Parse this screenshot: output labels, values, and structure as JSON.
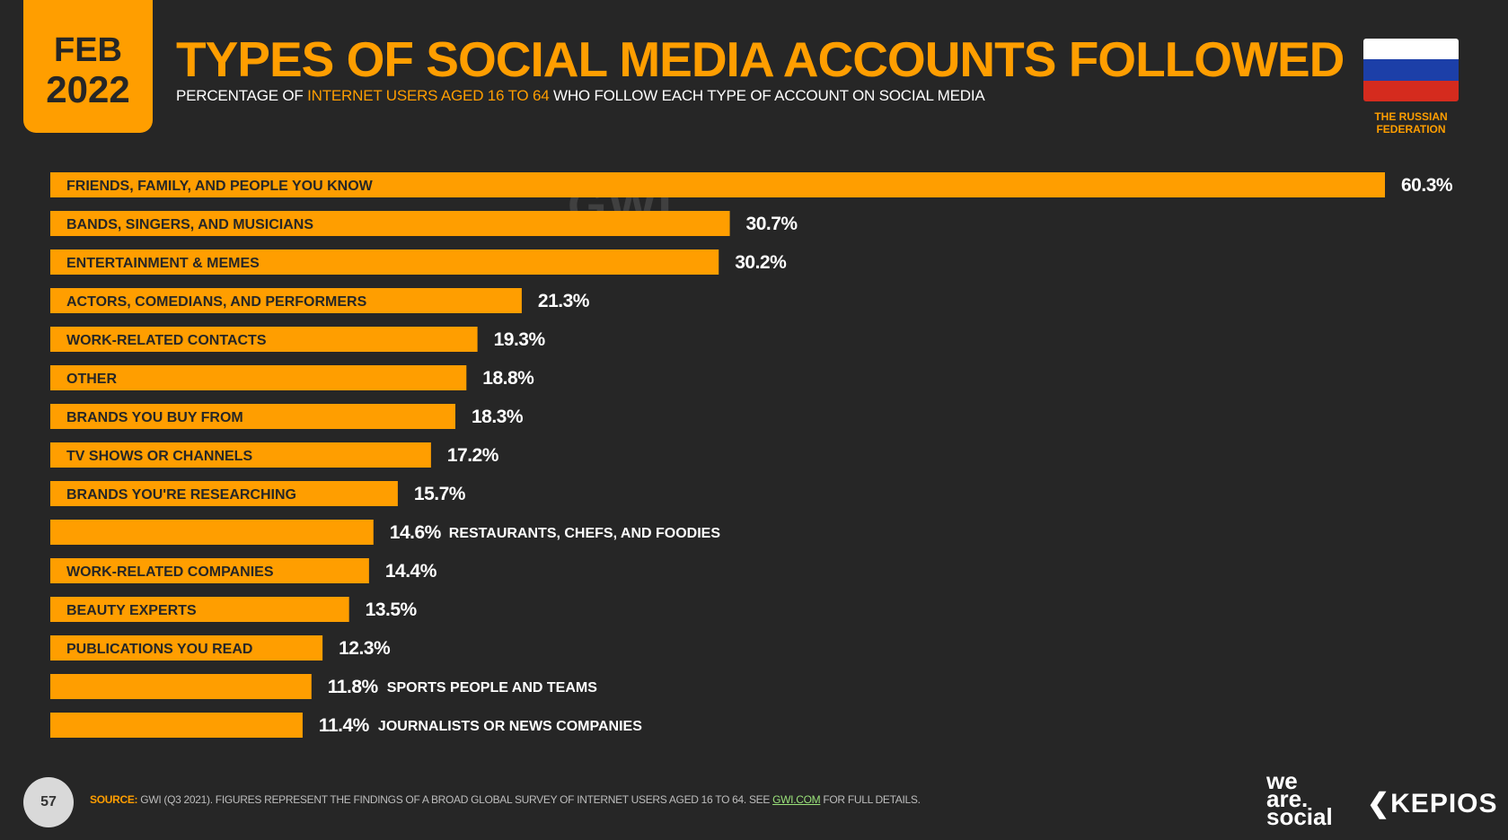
{
  "header": {
    "date_month": "FEB",
    "date_year": "2022",
    "title": "TYPES OF SOCIAL MEDIA ACCOUNTS FOLLOWED",
    "subtitle_pre": "PERCENTAGE OF ",
    "subtitle_highlight": "INTERNET USERS AGED 16 TO 64",
    "subtitle_post": " WHO FOLLOW EACH TYPE OF ACCOUNT ON SOCIAL MEDIA",
    "country_line1": "THE RUSSIAN",
    "country_line2": "FEDERATION",
    "watermark": "GWI."
  },
  "colors": {
    "background": "#262626",
    "accent": "#FF9E00",
    "flag": [
      "#FFFFFF",
      "#1C3FA8",
      "#D52B1E"
    ]
  },
  "chart_data": {
    "type": "bar",
    "orientation": "horizontal",
    "categories": [
      "FRIENDS, FAMILY, AND PEOPLE YOU KNOW",
      "BANDS, SINGERS, AND MUSICIANS",
      "ENTERTAINMENT & MEMES",
      "ACTORS, COMEDIANS, AND PERFORMERS",
      "WORK-RELATED CONTACTS",
      "OTHER",
      "BRANDS YOU BUY FROM",
      "TV SHOWS OR CHANNELS",
      "BRANDS YOU'RE RESEARCHING",
      "RESTAURANTS, CHEFS, AND FOODIES",
      "WORK-RELATED COMPANIES",
      "BEAUTY EXPERTS",
      "PUBLICATIONS YOU READ",
      "SPORTS PEOPLE AND TEAMS",
      "JOURNALISTS OR NEWS COMPANIES"
    ],
    "values": [
      60.3,
      30.7,
      30.2,
      21.3,
      19.3,
      18.8,
      18.3,
      17.2,
      15.7,
      14.6,
      14.4,
      13.5,
      12.3,
      11.8,
      11.4
    ],
    "value_labels": [
      "60.3%",
      "30.7%",
      "30.2%",
      "21.3%",
      "19.3%",
      "18.8%",
      "18.3%",
      "17.2%",
      "15.7%",
      "14.6%",
      "14.4%",
      "13.5%",
      "12.3%",
      "11.8%",
      "11.4%"
    ],
    "xlim": [
      0,
      60.3
    ],
    "grid": false,
    "legend": "none"
  },
  "footer": {
    "page_number": "57",
    "source_label": "SOURCE:",
    "source_text": " GWI (Q3 2021). FIGURES REPRESENT THE FINDINGS OF A BROAD GLOBAL SURVEY OF INTERNET USERS AGED 16 TO 64. SEE ",
    "source_link": "GWI.COM",
    "source_tail": " FOR FULL DETAILS.",
    "brand1_line1": "we",
    "brand1_line2": "are.",
    "brand1_line3": "social",
    "brand2": "KEPIOS"
  }
}
